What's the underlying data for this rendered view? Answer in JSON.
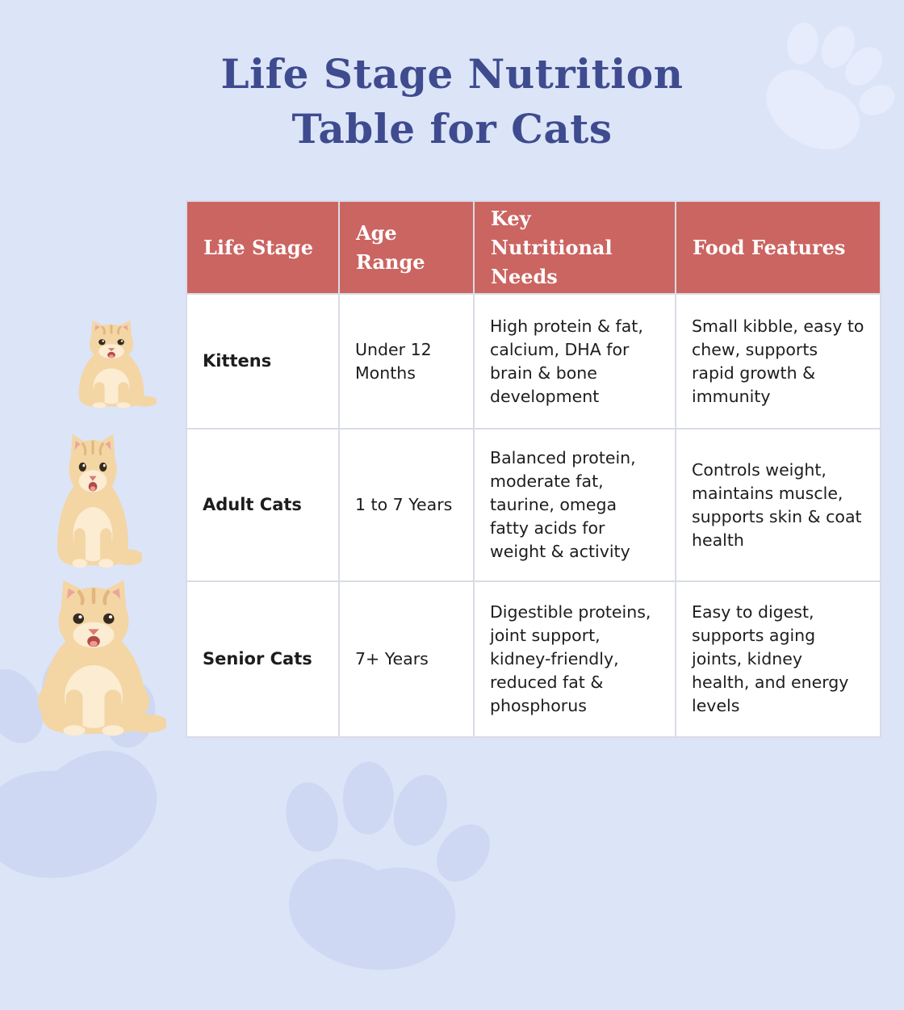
{
  "title": {
    "line1": "Life Stage Nutrition",
    "line2": "Table for Cats"
  },
  "chart_data": {
    "type": "table",
    "title": "Life Stage Nutrition Table for Cats",
    "columns": [
      "Life Stage",
      "Age Range",
      "Key Nutritional Needs",
      "Food Features"
    ],
    "rows": [
      [
        "Kittens",
        "Under 12 Months",
        "High protein & fat, calcium, DHA for brain & bone development",
        "Small kibble, easy to chew, supports rapid growth & immunity"
      ],
      [
        "Adult Cats",
        "1 to 7 Years",
        "Balanced protein, moderate fat, taurine, omega fatty acids for weight & activity",
        "Controls weight, maintains muscle, supports skin & coat health"
      ],
      [
        "Senior Cats",
        "7+ Years",
        "Digestible proteins, joint support, kidney-friendly, reduced fat & phosphorus",
        "Easy to digest, supports aging joints, kidney health, and energy levels"
      ]
    ]
  },
  "images": [
    {
      "name": "kitten-photo",
      "alt": "Cream fluffy kitten sitting with tongue out"
    },
    {
      "name": "adult-cat-photo",
      "alt": "Cream adult cat sitting with mouth open"
    },
    {
      "name": "senior-cat-photo",
      "alt": "Large fluffy cream senior cat sitting"
    },
    {
      "name": "paw-print-watermark",
      "alt": "Pale paw print background watermarks"
    }
  ],
  "colors": {
    "background": "#dce4f8",
    "title": "#3e4b8e",
    "header": "#cb6561",
    "header_text": "#ffffff",
    "cell_bg": "#ffffff",
    "cell_border": "#d9dce6",
    "body_text": "#1d1d1f",
    "paw_light": "#e6ecfb",
    "paw_dark": "#ced8f2",
    "cat_fur": "#f3d6a4",
    "cat_fur_light": "#fbecd2",
    "cat_fur_shade": "#e2b67e",
    "cat_ear": "#eda59b",
    "cat_nose": "#d97b74"
  }
}
